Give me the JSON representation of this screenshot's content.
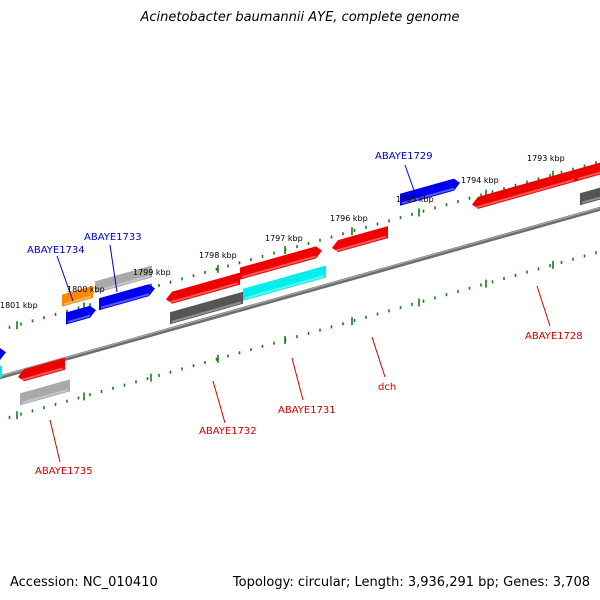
{
  "title": "Acinetobacter baumannii AYE, complete genome",
  "footer": {
    "accession": "Accession: NC_010410",
    "summary": "Topology: circular; Length: 3,936,291 bp; Genes: 3,708"
  },
  "colors": {
    "backbone": "#6e6e6e",
    "tick": "#1a7a1a",
    "red": "#ee0000",
    "blue": "#0000ee",
    "gray": "#a9a9a9",
    "darkgray": "#555555",
    "cyan": "#00eeee",
    "orange": "#ff8800",
    "label_blue": "#0000cc",
    "label_red": "#cc0000"
  },
  "kbp_labels": [
    "1801 kbp",
    "1800 kbp",
    "1799 kbp",
    "1798 kbp",
    "1797 kbp",
    "1796 kbp",
    "1795 kbp",
    "1794 kbp",
    "1793 kbp"
  ],
  "gene_labels": [
    "ABAYE1734",
    "ABAYE1733",
    "ABAYE1729",
    "ABAYE1735",
    "ABAYE1732",
    "ABAYE1731",
    "dch",
    "ABAYE1728"
  ]
}
